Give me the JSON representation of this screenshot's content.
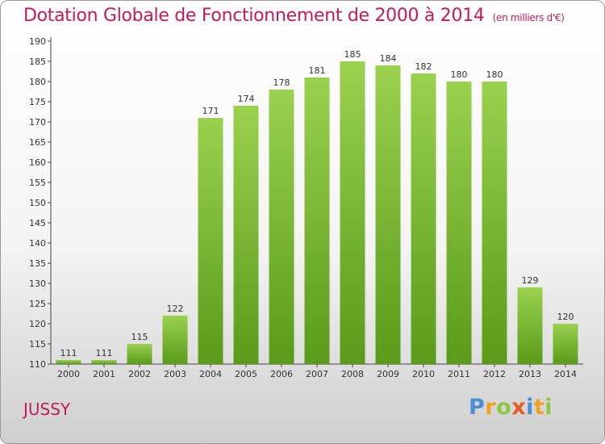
{
  "chart_data": {
    "type": "bar",
    "title": "Dotation Globale de Fonctionnement de 2000 à 2014",
    "unit": "(en milliers d'€)",
    "categories": [
      "2000",
      "2001",
      "2002",
      "2003",
      "2004",
      "2005",
      "2006",
      "2007",
      "2008",
      "2009",
      "2010",
      "2011",
      "2012",
      "2013",
      "2014"
    ],
    "values": [
      111,
      111,
      115,
      122,
      171,
      174,
      178,
      181,
      185,
      184,
      182,
      180,
      180,
      129,
      120
    ],
    "ylim": [
      110,
      190
    ],
    "yticks": [
      110,
      115,
      120,
      125,
      130,
      135,
      140,
      145,
      150,
      155,
      160,
      165,
      170,
      175,
      180,
      185,
      190
    ],
    "grid": false,
    "bar_color_top": "#9ad14f",
    "bar_color_bottom": "#5b9a1a",
    "title_color": "#c21a5a"
  },
  "commune": "JUSSY",
  "logo": {
    "text": "Proxiti",
    "colors": [
      "#4a8fd6",
      "#f0a020",
      "#8dc63f",
      "#e85b20"
    ]
  }
}
